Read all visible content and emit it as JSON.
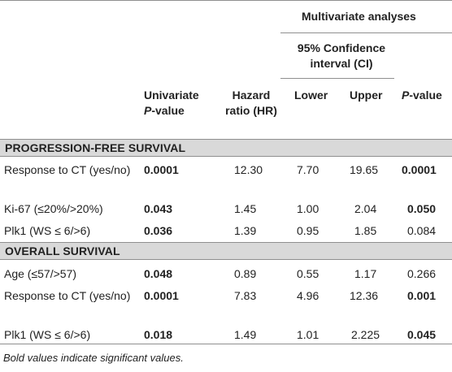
{
  "header": {
    "multivariate": "Multivariate analyses",
    "ci_line1": "95% Confidence",
    "ci_line2": "interval (CI)",
    "univariate_line1": "Univariate",
    "univariate_line2_italic": "P",
    "univariate_line2_rest": "-value",
    "hr_line1": "Hazard",
    "hr_line2": "ratio (HR)",
    "lower": "Lower",
    "upper": "Upper",
    "pvalue_italic": "P",
    "pvalue_rest": "-value"
  },
  "sections": [
    {
      "title": "PROGRESSION-FREE SURVIVAL",
      "rows": [
        {
          "label": "Response to CT (yes/no)",
          "univariate": "0.0001",
          "uni_bold": true,
          "hr": "12.30",
          "lower": "7.70",
          "upper": "19.65",
          "p": "0.0001",
          "p_bold": true
        },
        {
          "label": "Ki-67 (≤20%/>20%)",
          "univariate": "0.043",
          "uni_bold": true,
          "hr": "1.45",
          "lower": "1.00",
          "upper": "2.04",
          "p": "0.050",
          "p_bold": true
        },
        {
          "label": "Plk1 (WS ≤ 6/>6)",
          "univariate": "0.036",
          "uni_bold": true,
          "hr": "1.39",
          "lower": "0.95",
          "upper": "1.85",
          "p": "0.084",
          "p_bold": false
        }
      ]
    },
    {
      "title": "OVERALL SURVIVAL",
      "rows": [
        {
          "label": "Age (≤57/>57)",
          "univariate": "0.048",
          "uni_bold": true,
          "hr": "0.89",
          "lower": "0.55",
          "upper": "1.17",
          "p": "0.266",
          "p_bold": false
        },
        {
          "label": "Response to CT (yes/no)",
          "univariate": "0.0001",
          "uni_bold": true,
          "hr": "7.83",
          "lower": "4.96",
          "upper": "12.36",
          "p": "0.001",
          "p_bold": true
        },
        {
          "label": "Plk1 (WS ≤ 6/>6)",
          "univariate": "0.018",
          "uni_bold": true,
          "hr": "1.49",
          "lower": "1.01",
          "upper": "2.225",
          "p": "0.045",
          "p_bold": true
        }
      ]
    }
  ],
  "footnote": "Bold values indicate significant values."
}
